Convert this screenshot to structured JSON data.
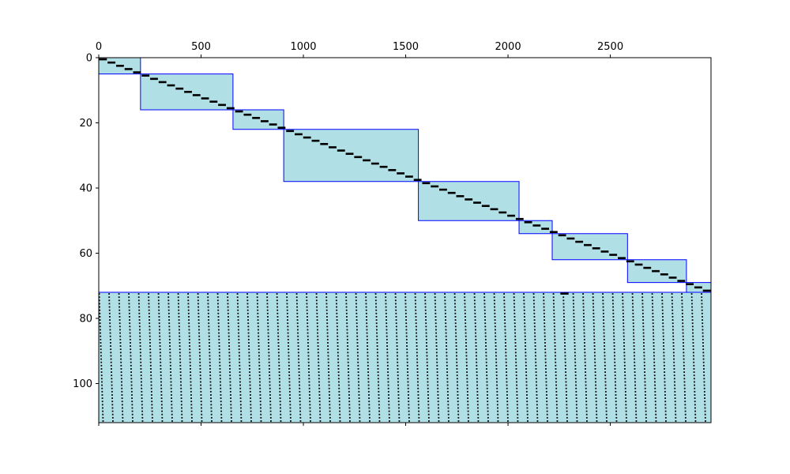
{
  "chart_data": {
    "type": "sparsity-block-matrix",
    "title": "",
    "xlabel": "",
    "ylabel": "",
    "xlim": [
      0,
      2992
    ],
    "ylim": [
      112,
      0
    ],
    "x_axis_position": "top",
    "y_inverted": true,
    "x_ticks": [
      0,
      500,
      1000,
      1500,
      2000,
      2500
    ],
    "x_tick_labels": [
      "0",
      "500",
      "1000",
      "1500",
      "2000",
      "2500"
    ],
    "y_ticks": [
      0,
      20,
      40,
      60,
      80,
      100
    ],
    "y_tick_labels": [
      "0",
      "20",
      "40",
      "60",
      "80",
      "100"
    ],
    "colors": {
      "block_fill": "#b0e0e6",
      "block_edge": "#0000ff",
      "entry": "#000000"
    },
    "blocks": [
      {
        "x0": 0,
        "x1": 204,
        "y0": 0,
        "y1": 5
      },
      {
        "x0": 204,
        "x1": 656,
        "y0": 5,
        "y1": 16
      },
      {
        "x0": 656,
        "x1": 904,
        "y0": 16,
        "y1": 22
      },
      {
        "x0": 904,
        "x1": 1562,
        "y0": 22,
        "y1": 38
      },
      {
        "x0": 1562,
        "x1": 2054,
        "y0": 38,
        "y1": 50
      },
      {
        "x0": 2054,
        "x1": 2216,
        "y0": 50,
        "y1": 54
      },
      {
        "x0": 2216,
        "x1": 2584,
        "y0": 54,
        "y1": 62
      },
      {
        "x0": 2584,
        "x1": 2872,
        "y0": 62,
        "y1": 69
      },
      {
        "x0": 2872,
        "x1": 2992,
        "y0": 69,
        "y1": 72
      },
      {
        "x0": 0,
        "x1": 2992,
        "y0": 72,
        "y1": 112
      }
    ],
    "diagonal_entries": {
      "rows": 72,
      "x_start": 0,
      "x_end": 2992,
      "segment_width": 38
    },
    "dense_region": {
      "y0": 72,
      "y1": 112,
      "columns": 62,
      "row_step": 1,
      "slope": 0.06
    },
    "extra_entries": [
      {
        "x": 2276,
        "y": 72,
        "width": 40
      }
    ]
  }
}
